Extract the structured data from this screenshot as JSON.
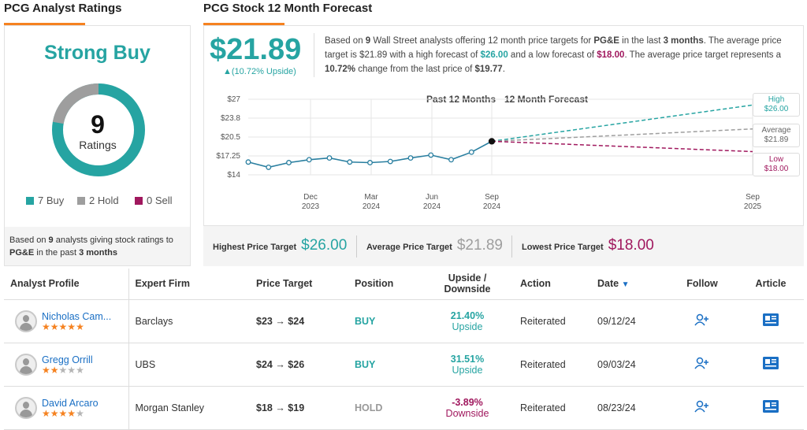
{
  "ratings": {
    "title": "PCG Analyst Ratings",
    "consensus": "Strong Buy",
    "total": "9",
    "total_label": "Ratings",
    "buy": 7,
    "hold": 2,
    "sell": 0,
    "buy_label": "7 Buy",
    "hold_label": "2 Hold",
    "sell_label": "0 Sell",
    "footnote_1": "Based on ",
    "footnote_count": "9",
    "footnote_2": " analysts giving stock ratings to",
    "footnote_ticker": "PG&E",
    "footnote_3": " in the past ",
    "footnote_period": "3 months",
    "colors": {
      "buy": "#26a4a2",
      "hold": "#9e9e9e",
      "sell": "#a0185e"
    }
  },
  "forecast": {
    "title": "PCG Stock 12 Month Forecast",
    "avg_price": "$21.89",
    "upside": "▲(10.72% Upside)",
    "desc": {
      "p1": "Based on ",
      "analysts": "9",
      "p2": " Wall Street analysts offering 12 month price targets for ",
      "ticker": "PG&E",
      "p3": " in the last ",
      "period": "3 months",
      "p4": ". The average price target is $21.89 with a high forecast of ",
      "high": "$26.00",
      "p5": " and a low forecast of ",
      "low": "$18.00",
      "p6": ". The average price target represents a ",
      "pct": "10.72%",
      "p7": " change from the last price of ",
      "last": "$19.77",
      "p8": "."
    },
    "legend_past": "Past 12 Months",
    "legend_forecast": "12 Month Forecast",
    "high_label": "High",
    "high_value": "$26.00",
    "avg_label": "Average",
    "avg_value": "$21.89",
    "low_label": "Low",
    "low_value": "$18.00",
    "targets": {
      "highest_label": "Highest Price Target",
      "highest_value": "$26.00",
      "average_label": "Average Price Target",
      "average_value": "$21.89",
      "lowest_label": "Lowest Price Target",
      "lowest_value": "$18.00"
    }
  },
  "chart_data": {
    "type": "line",
    "y_ticks": [
      "$27",
      "$23.8",
      "$20.5",
      "$17.25",
      "$14"
    ],
    "ylim": [
      14,
      27
    ],
    "x_ticks": [
      {
        "m": "Dec",
        "y": "2023"
      },
      {
        "m": "Mar",
        "y": "2024"
      },
      {
        "m": "Jun",
        "y": "2024"
      },
      {
        "m": "Sep",
        "y": "2024"
      },
      {
        "m": "Sep",
        "y": "2025"
      }
    ],
    "series": [
      {
        "values": [
          16.2,
          15.3,
          16.1,
          16.6,
          16.9,
          16.2,
          16.1,
          16.3,
          16.9,
          17.4,
          16.6,
          17.9,
          19.77
        ]
      }
    ],
    "forecast_lines": [
      {
        "name": "High",
        "value": 26.0,
        "color": "#26a4a2"
      },
      {
        "name": "Average",
        "value": 21.89,
        "color": "#9e9e9e"
      },
      {
        "name": "Low",
        "value": 18.0,
        "color": "#a0185e"
      }
    ]
  },
  "table": {
    "headers": {
      "profile": "Analyst Profile",
      "firm": "Expert Firm",
      "target": "Price Target",
      "position": "Position",
      "updown_1": "Upside /",
      "updown_2": "Downside",
      "action": "Action",
      "date": "Date",
      "follow": "Follow",
      "article": "Article"
    },
    "rows": [
      {
        "name": "Nicholas Cam...",
        "firm": "Barclays",
        "target": "$23 → $24",
        "position": "BUY",
        "pct": "21.40%",
        "dir": "Upside",
        "action": "Reiterated",
        "date": "09/12/24"
      },
      {
        "name": "Gregg Orrill",
        "firm": "UBS",
        "target": "$24 → $26",
        "position": "BUY",
        "pct": "31.51%",
        "dir": "Upside",
        "action": "Reiterated",
        "date": "09/03/24"
      },
      {
        "name": "David Arcaro",
        "firm": "Morgan Stanley",
        "target": "$18 → $19",
        "position": "HOLD",
        "pct": "-3.89%",
        "dir": "Downside",
        "action": "Reiterated",
        "date": "08/23/24"
      }
    ],
    "stars": [
      5,
      2,
      4
    ]
  }
}
